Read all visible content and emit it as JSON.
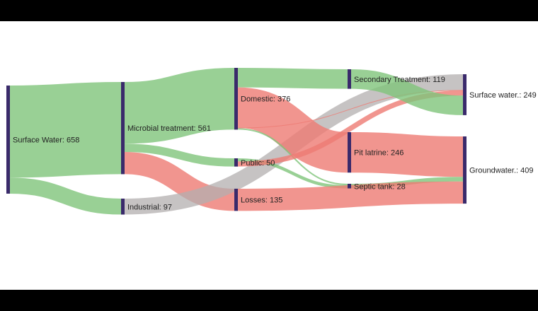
{
  "colors": {
    "green": "#7fc47a",
    "red": "#ee7a73",
    "grey": "#b3afaf",
    "node": "#3a2a6b"
  },
  "chart_data": {
    "type": "sankey",
    "title": "",
    "nodes": [
      {
        "id": "surface_water",
        "label": "Surface Water: 658",
        "value": 658,
        "column": 0
      },
      {
        "id": "microbial",
        "label": "Microbial treatment: 561",
        "value": 561,
        "column": 1
      },
      {
        "id": "industrial",
        "label": "Industrial: 97",
        "value": 97,
        "column": 1
      },
      {
        "id": "domestic",
        "label": "Domestic: 376",
        "value": 376,
        "column": 2
      },
      {
        "id": "public",
        "label": "Public: 50",
        "value": 50,
        "column": 2
      },
      {
        "id": "losses",
        "label": "Losses: 135",
        "value": 135,
        "column": 2
      },
      {
        "id": "secondary",
        "label": "Secondary Treatment: 119",
        "value": 119,
        "column": 3
      },
      {
        "id": "pit",
        "label": "Pit latrine: 246",
        "value": 246,
        "column": 3
      },
      {
        "id": "septic",
        "label": "Septic tank: 28",
        "value": 28,
        "column": 3
      },
      {
        "id": "surface_out",
        "label": "Surface water.: 249",
        "value": 249,
        "column": 4
      },
      {
        "id": "ground",
        "label": "Groundwater.: 409",
        "value": 409,
        "column": 4
      }
    ],
    "links": [
      {
        "source": "surface_water",
        "target": "microbial",
        "value": 561,
        "color": "green"
      },
      {
        "source": "surface_water",
        "target": "industrial",
        "value": 97,
        "color": "green"
      },
      {
        "source": "microbial",
        "target": "domestic",
        "value": 376,
        "color": "green"
      },
      {
        "source": "microbial",
        "target": "public",
        "value": 50,
        "color": "green"
      },
      {
        "source": "microbial",
        "target": "losses",
        "value": 135,
        "color": "red"
      },
      {
        "source": "industrial",
        "target": "surface_out",
        "value": 97,
        "color": "grey"
      },
      {
        "source": "domestic",
        "target": "secondary",
        "value": 119,
        "color": "green"
      },
      {
        "source": "domestic",
        "target": "pit",
        "value": 246,
        "color": "red"
      },
      {
        "source": "domestic",
        "target": "surface_out",
        "value": 2,
        "color": "red"
      },
      {
        "source": "domestic",
        "target": "septic",
        "value": 9,
        "color": "green"
      },
      {
        "source": "public",
        "target": "septic",
        "value": 19,
        "color": "green"
      },
      {
        "source": "public",
        "target": "surface_out",
        "value": 31,
        "color": "red"
      },
      {
        "source": "secondary",
        "target": "surface_out",
        "value": 119,
        "color": "green"
      },
      {
        "source": "pit",
        "target": "ground",
        "value": 246,
        "color": "red"
      },
      {
        "source": "septic",
        "target": "ground",
        "value": 28,
        "color": "green"
      },
      {
        "source": "losses",
        "target": "ground",
        "value": 135,
        "color": "red"
      }
    ]
  }
}
